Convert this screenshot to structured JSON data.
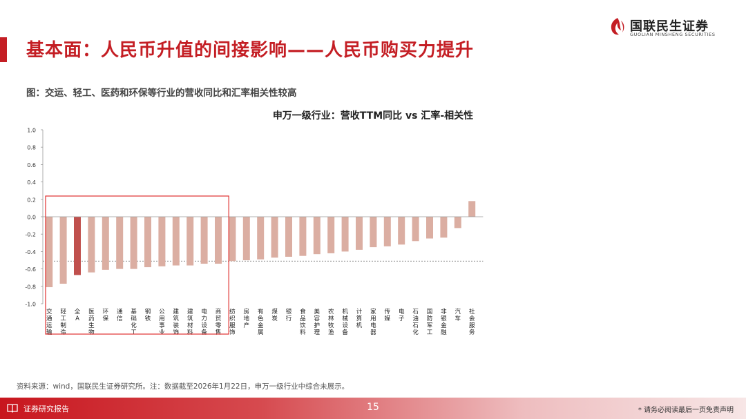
{
  "header": {
    "title": "基本面：人民币升值的间接影响——人民币购买力提升",
    "logo_cn": "国联民生证券",
    "logo_en": "GUOLIAN MINSHENG SECURITIES"
  },
  "figure_caption": "图：交运、轻工、医药和环保等行业的营收同比和汇率相关性较高",
  "chart_data": {
    "type": "bar",
    "title": "申万一级行业：营收TTM同比 vs 汇率-相关性",
    "ylim": [
      -1.0,
      1.0
    ],
    "yticks": [
      "1.0",
      "0.8",
      "0.6",
      "0.4",
      "0.2",
      "0.0",
      "-0.2",
      "-0.4",
      "-0.6",
      "-0.8",
      "-1.0"
    ],
    "categories": [
      "交通运输",
      "轻工制造",
      "全A",
      "医药生物",
      "环保",
      "通信",
      "基础化工",
      "钢铁",
      "公用事业",
      "建筑装饰",
      "建筑材料",
      "电力设备",
      "商贸零售",
      "纺织服饰",
      "房地产",
      "有色金属",
      "煤炭",
      "银行",
      "食品饮料",
      "美容护理",
      "农林牧渔",
      "机械设备",
      "计算机",
      "家用电器",
      "传媒",
      "电子",
      "石油石化",
      "国防军工",
      "非银金融",
      "汽车",
      "社会服务"
    ],
    "values": [
      -0.81,
      -0.77,
      -0.67,
      -0.64,
      -0.61,
      -0.6,
      -0.6,
      -0.58,
      -0.57,
      -0.56,
      -0.56,
      -0.54,
      -0.54,
      -0.51,
      -0.5,
      -0.49,
      -0.47,
      -0.46,
      -0.45,
      -0.43,
      -0.42,
      -0.4,
      -0.38,
      -0.35,
      -0.34,
      -0.32,
      -0.28,
      -0.25,
      -0.24,
      -0.13,
      0.18
    ],
    "highlight_category": "全A",
    "reference_line": -0.51,
    "highlighted_group": [
      "交通运输",
      "轻工制造",
      "全A",
      "医药生物",
      "环保",
      "通信",
      "基础化工",
      "钢铁",
      "公用事业",
      "建筑装饰",
      "建筑材料",
      "电力设备",
      "商贸零售"
    ],
    "colors": {
      "bar": "#dbaea2",
      "highlight": "#c0504d",
      "box": "#e0302f",
      "reference": "#666666"
    }
  },
  "source": "资料来源：wind，国联民生证券研究所。注：数据截至2026年1月22日，申万一级行业中综合未展示。",
  "footer": {
    "left_label": "证券研究报告",
    "page_number": "15",
    "disclaimer": "* 请务必阅读最后一页免责声明"
  }
}
